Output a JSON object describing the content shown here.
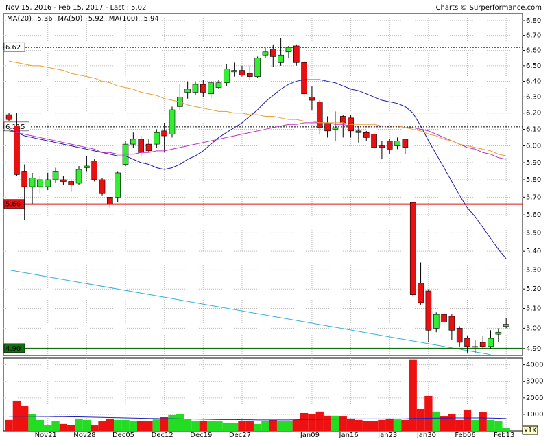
{
  "chart_data": {
    "type": "candlestick",
    "title": "Nov 15, 2016 - Feb 15, 2017 - Last : 5.02",
    "source": "Charts © Surperformance.com",
    "log_scale": true,
    "grid": true,
    "up_color": "#33ee33",
    "down_color": "#e81010",
    "categories": [
      null,
      null,
      null,
      null,
      null,
      "Nov21",
      null,
      null,
      null,
      null,
      "Nov28",
      null,
      null,
      null,
      null,
      "Dec05",
      null,
      null,
      null,
      null,
      "Dec12",
      null,
      null,
      null,
      null,
      "Dec19",
      null,
      null,
      null,
      null,
      "Dec27",
      null,
      null,
      null,
      null,
      null,
      null,
      null,
      null,
      "Jan09",
      null,
      null,
      null,
      null,
      "Jan16",
      null,
      null,
      null,
      null,
      "Jan23",
      null,
      null,
      null,
      null,
      "Jan30",
      null,
      null,
      null,
      null,
      "Feb06",
      null,
      null,
      null,
      null,
      "Feb13"
    ],
    "open": [
      6.19,
      6.12,
      5.85,
      5.76,
      5.76,
      5.76,
      5.8,
      5.8,
      5.79,
      5.78,
      5.87,
      5.91,
      5.8,
      5.7,
      5.7,
      5.89,
      6.01,
      6.04,
      6.01,
      6.01,
      6.09,
      6.07,
      6.24,
      6.33,
      6.33,
      6.38,
      6.32,
      6.36,
      6.39,
      6.46,
      6.47,
      6.45,
      6.43,
      6.57,
      6.61,
      6.52,
      6.59,
      6.63,
      6.52,
      6.3,
      6.27,
      6.14,
      6.1,
      6.18,
      6.17,
      6.09,
      6.08,
      6.07,
      6.0,
      6.03,
      6.0,
      6.04,
      5.67,
      5.23,
      5.19,
      5.0,
      5.07,
      5.06,
      5.0,
      4.95,
      4.91,
      4.93,
      4.91,
      4.97,
      5.01
    ],
    "high": [
      6.2,
      6.2,
      5.89,
      5.84,
      5.82,
      5.84,
      5.87,
      5.82,
      5.8,
      5.88,
      5.94,
      5.92,
      5.81,
      5.7,
      5.85,
      6.03,
      6.08,
      6.06,
      6.04,
      6.1,
      6.14,
      6.24,
      6.38,
      6.4,
      6.4,
      6.41,
      6.4,
      6.41,
      6.51,
      6.52,
      6.5,
      6.5,
      6.56,
      6.62,
      6.64,
      6.68,
      6.63,
      6.64,
      6.53,
      6.37,
      6.28,
      6.18,
      6.21,
      6.19,
      6.19,
      6.12,
      6.09,
      6.08,
      6.03,
      6.04,
      6.05,
      6.04,
      5.67,
      5.34,
      5.2,
      5.08,
      5.08,
      5.07,
      5.01,
      4.96,
      4.94,
      4.96,
      4.99,
      5.0,
      5.05
    ],
    "low": [
      6.15,
      5.82,
      5.57,
      5.66,
      5.72,
      5.74,
      5.78,
      5.77,
      5.73,
      5.77,
      5.85,
      5.79,
      5.71,
      5.64,
      5.67,
      5.88,
      5.99,
      5.94,
      5.96,
      5.99,
      5.96,
      6.05,
      6.22,
      6.29,
      6.31,
      6.3,
      6.29,
      6.35,
      6.37,
      6.43,
      6.43,
      6.41,
      6.42,
      6.55,
      6.49,
      6.5,
      6.55,
      6.5,
      6.3,
      6.22,
      6.07,
      6.05,
      6.03,
      6.05,
      6.05,
      6.02,
      6.03,
      5.96,
      5.92,
      5.95,
      5.98,
      5.95,
      5.16,
      5.12,
      4.93,
      4.98,
      5.01,
      4.94,
      4.91,
      4.88,
      4.88,
      4.9,
      4.9,
      4.93,
      5.0
    ],
    "close": [
      6.16,
      5.83,
      5.76,
      5.81,
      5.8,
      5.8,
      5.85,
      5.79,
      5.77,
      5.86,
      5.88,
      5.8,
      5.72,
      5.66,
      5.84,
      6.01,
      6.04,
      5.96,
      5.97,
      6.08,
      6.06,
      6.22,
      6.3,
      6.35,
      6.38,
      6.33,
      6.39,
      6.39,
      6.48,
      6.47,
      6.44,
      6.43,
      6.55,
      6.59,
      6.56,
      6.57,
      6.62,
      6.52,
      6.32,
      6.28,
      6.11,
      6.09,
      6.11,
      6.14,
      6.09,
      6.08,
      6.05,
      5.99,
      5.99,
      5.98,
      6.03,
      5.99,
      5.17,
      5.13,
      4.99,
      5.07,
      5.03,
      4.99,
      4.93,
      4.91,
      4.91,
      4.91,
      4.95,
      4.98,
      5.02
    ],
    "ylim": [
      4.866,
      6.847
    ],
    "yticks": [
      {
        "value": 4.9,
        "label": "4.90"
      },
      {
        "value": 5.0,
        "label": "5.00"
      },
      {
        "value": 5.1,
        "label": "5.10"
      },
      {
        "value": 5.2,
        "label": "5.20"
      },
      {
        "value": 5.3,
        "label": "5.30"
      },
      {
        "value": 5.4,
        "label": "5.40"
      },
      {
        "value": 5.5,
        "label": "5.50"
      },
      {
        "value": 5.6,
        "label": "5.60"
      },
      {
        "value": 5.7,
        "label": "5.70"
      },
      {
        "value": 5.8,
        "label": "5.80"
      },
      {
        "value": 5.9,
        "label": "5.90"
      },
      {
        "value": 6.0,
        "label": "6.00"
      },
      {
        "value": 6.1,
        "label": "6.10"
      },
      {
        "value": 6.2,
        "label": "6.20"
      },
      {
        "value": 6.3,
        "label": "6.30"
      },
      {
        "value": 6.4,
        "label": "6.40"
      },
      {
        "value": 6.5,
        "label": "6.50"
      },
      {
        "value": 6.6,
        "label": "6.60"
      },
      {
        "value": 6.7,
        "label": "6.70"
      },
      {
        "value": 6.8,
        "label": "6.80"
      }
    ],
    "series": [
      {
        "name": "MA(20)",
        "last": 5.36,
        "color": "#1a1aa8",
        "values": [
          6.1,
          6.08,
          6.06,
          6.05,
          6.04,
          6.03,
          6.02,
          6.01,
          6.0,
          5.99,
          5.98,
          5.97,
          5.96,
          5.95,
          5.94,
          5.94,
          5.92,
          5.9,
          5.89,
          5.87,
          5.86,
          5.87,
          5.89,
          5.92,
          5.94,
          5.97,
          6.01,
          6.05,
          6.08,
          6.11,
          6.14,
          6.18,
          6.22,
          6.27,
          6.31,
          6.35,
          6.38,
          6.4,
          6.41,
          6.41,
          6.41,
          6.4,
          6.39,
          6.37,
          6.35,
          6.34,
          6.32,
          6.3,
          6.28,
          6.27,
          6.26,
          6.24,
          6.2,
          6.12,
          6.03,
          5.95,
          5.87,
          5.79,
          5.71,
          5.64,
          5.59,
          5.53,
          5.47,
          5.41,
          5.36
        ]
      },
      {
        "name": "MA(50)",
        "last": 5.92,
        "color": "#c030c0",
        "values": [
          6.09,
          6.08,
          6.07,
          6.06,
          6.05,
          6.04,
          6.03,
          6.02,
          6.01,
          6.0,
          5.99,
          5.98,
          5.96,
          5.96,
          5.95,
          5.95,
          5.95,
          5.96,
          5.96,
          5.97,
          5.97,
          5.98,
          5.99,
          6.0,
          6.01,
          6.02,
          6.03,
          6.04,
          6.05,
          6.06,
          6.07,
          6.08,
          6.09,
          6.1,
          6.11,
          6.12,
          6.13,
          6.13,
          6.14,
          6.14,
          6.14,
          6.14,
          6.13,
          6.13,
          6.12,
          6.12,
          6.12,
          6.12,
          6.12,
          6.12,
          6.12,
          6.11,
          6.11,
          6.1,
          6.09,
          6.07,
          6.05,
          6.03,
          6.01,
          5.99,
          5.98,
          5.96,
          5.95,
          5.93,
          5.92
        ]
      },
      {
        "name": "MA(100)",
        "last": 5.94,
        "color": "#e8a030",
        "values": [
          6.53,
          6.52,
          6.51,
          6.5,
          6.5,
          6.49,
          6.48,
          6.47,
          6.45,
          6.44,
          6.43,
          6.42,
          6.4,
          6.39,
          6.37,
          6.36,
          6.35,
          6.33,
          6.32,
          6.31,
          6.29,
          6.28,
          6.27,
          6.25,
          6.24,
          6.23,
          6.22,
          6.21,
          6.21,
          6.2,
          6.2,
          6.19,
          6.19,
          6.18,
          6.18,
          6.17,
          6.16,
          6.16,
          6.15,
          6.15,
          6.14,
          6.14,
          6.14,
          6.14,
          6.13,
          6.13,
          6.13,
          6.13,
          6.12,
          6.12,
          6.12,
          6.11,
          6.1,
          6.09,
          6.07,
          6.06,
          6.04,
          6.03,
          6.01,
          6.0,
          5.99,
          5.98,
          5.97,
          5.95,
          5.94
        ]
      }
    ],
    "levels": [
      {
        "value": 6.62,
        "label": "6.62",
        "color": "#000000",
        "dashed": true
      },
      {
        "value": 6.115,
        "label": "6.115",
        "color": "#000000",
        "dashed": true
      },
      {
        "value": 5.66,
        "label": "5.66",
        "color": "#e81010",
        "dashed": false
      },
      {
        "value": 4.9,
        "label": "4.90",
        "color": "#107010",
        "dashed": false
      }
    ],
    "trendline": {
      "x": [
        0,
        62
      ],
      "y": [
        5.3,
        4.87
      ],
      "color": "#30b0d8"
    },
    "volume": {
      "unit": "x1K",
      "ylim": [
        0,
        4400
      ],
      "yticks": [
        1000,
        2000,
        3000,
        4000
      ],
      "avg_color": "#2020c0",
      "values": [
        670,
        1830,
        1500,
        1040,
        670,
        330,
        580,
        420,
        370,
        750,
        670,
        330,
        580,
        750,
        670,
        670,
        580,
        620,
        580,
        700,
        830,
        960,
        1040,
        700,
        580,
        620,
        580,
        580,
        500,
        500,
        580,
        580,
        420,
        620,
        670,
        580,
        580,
        670,
        1080,
        1000,
        1170,
        920,
        920,
        870,
        750,
        670,
        620,
        580,
        670,
        750,
        700,
        670,
        4330,
        1330,
        2120,
        1170,
        870,
        1040,
        670,
        1290,
        670,
        1120,
        670,
        620,
        170
      ],
      "average": [
        880,
        880,
        880,
        880,
        870,
        870,
        860,
        860,
        850,
        850,
        840,
        830,
        820,
        810,
        800,
        790,
        780,
        770,
        760,
        750,
        740,
        740,
        730,
        720,
        720,
        710,
        700,
        690,
        690,
        690,
        680,
        680,
        670,
        670,
        670,
        670,
        670,
        680,
        690,
        700,
        710,
        720,
        720,
        730,
        730,
        730,
        730,
        730,
        730,
        730,
        730,
        730,
        760,
        760,
        770,
        780,
        780,
        790,
        790,
        790,
        790,
        790,
        780,
        770,
        750
      ]
    }
  }
}
